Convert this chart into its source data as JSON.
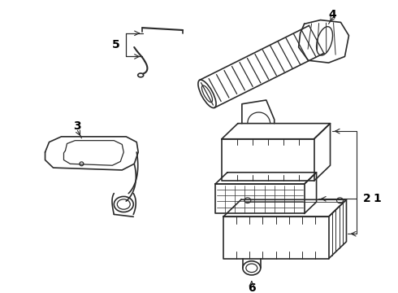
{
  "background_color": "#ffffff",
  "line_color": "#2a2a2a",
  "label_color": "#000000",
  "figsize": [
    4.9,
    3.6
  ],
  "dpi": 100
}
